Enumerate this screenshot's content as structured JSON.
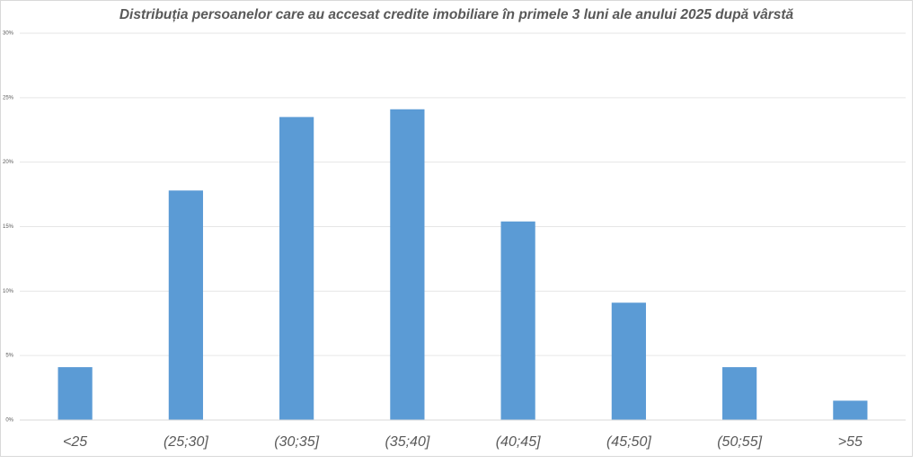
{
  "chart_data": {
    "type": "bar",
    "title": "Distribuția persoanelor care au accesat credite imobiliare în primele 3 luni ale anului 2025 după vârstă",
    "categories": [
      "<25",
      "(25;30]",
      "(30;35]",
      "(35;40]",
      "(40;45]",
      "(45;50]",
      "(50;55]",
      ">55"
    ],
    "values": [
      4.1,
      17.8,
      23.5,
      24.1,
      15.4,
      9.1,
      4.1,
      1.5
    ],
    "color": "#5b9bd5",
    "ylim": [
      0,
      30
    ],
    "yticks": [
      {
        "value": 0,
        "label": "0%"
      },
      {
        "value": 5,
        "label": "5%"
      },
      {
        "value": 10,
        "label": "10%"
      },
      {
        "value": 15,
        "label": "15%"
      },
      {
        "value": 20,
        "label": "20%"
      },
      {
        "value": 25,
        "label": "25%"
      },
      {
        "value": 30,
        "label": "30%"
      }
    ],
    "grid": true
  }
}
